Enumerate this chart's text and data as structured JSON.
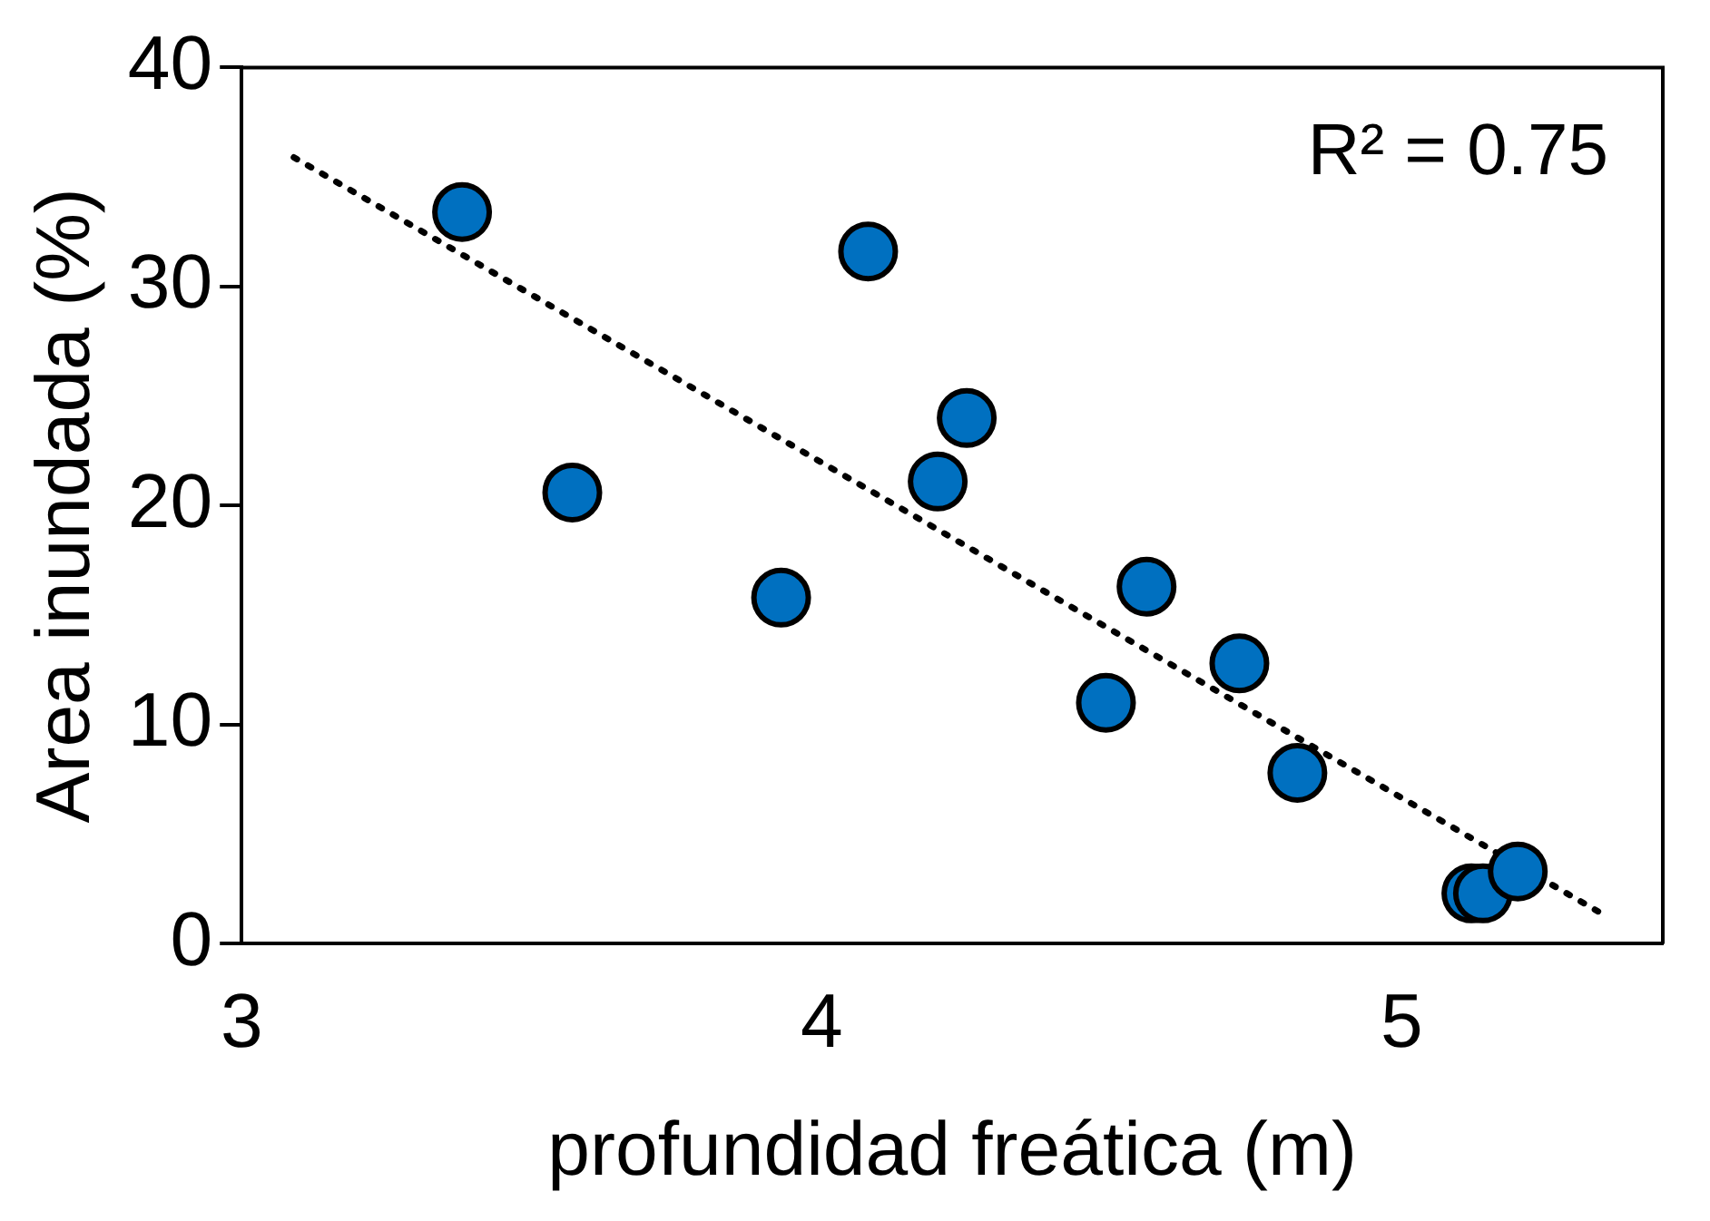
{
  "chart_data": {
    "type": "scatter",
    "xlabel": "profundidad freática (m)",
    "ylabel": "Area inundada (%)",
    "annotations": [
      "R² = 0.75"
    ],
    "xlim": [
      3,
      5.45
    ],
    "xticks": [
      3,
      4,
      5
    ],
    "ylim": [
      0,
      40
    ],
    "yticks": [
      0,
      10,
      20,
      30,
      40
    ],
    "grid": false,
    "legend": false,
    "marker": "circle",
    "series": [
      {
        "color": "#0070c0",
        "x": [
          3.38,
          3.57,
          3.93,
          4.08,
          4.2,
          4.25,
          4.49,
          4.56,
          4.72,
          4.82,
          5.12,
          5.14,
          5.2
        ],
        "values": [
          33.4,
          20.6,
          15.8,
          31.6,
          21.1,
          24.0,
          11.0,
          16.3,
          12.8,
          7.8,
          2.3,
          2.3,
          3.3
        ]
      },
      {
        "type": "line",
        "color": "#000000",
        "line_style": "dotted",
        "marker": "none",
        "x": [
          3.09,
          5.35
        ],
        "values": [
          35.9,
          1.3
        ]
      }
    ]
  }
}
